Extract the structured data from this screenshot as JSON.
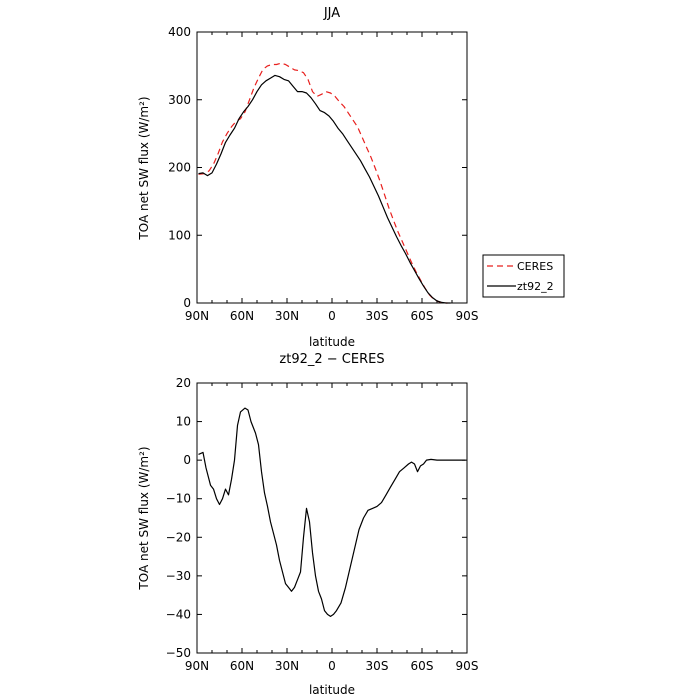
{
  "chart_data": [
    {
      "type": "line",
      "title": "JJA",
      "xlabel": "latitude",
      "ylabel": "TOA net SW flux (W/m²)",
      "xlim": [
        90,
        -90
      ],
      "ylim": [
        0,
        400
      ],
      "xticks": [
        90,
        60,
        30,
        0,
        -30,
        -60,
        -90
      ],
      "xtick_labels": [
        "90N",
        "60N",
        "30N",
        "0",
        "30S",
        "60S",
        "90S"
      ],
      "yticks": [
        0,
        100,
        200,
        300,
        400
      ],
      "ytick_labels": [
        "0",
        "100",
        "200",
        "300",
        "400"
      ],
      "grid": false,
      "legend_position": "right-outside",
      "series": [
        {
          "name": "CERES",
          "color": "#e8201e",
          "dash": "dashed",
          "points": [
            [
              89,
              190
            ],
            [
              85,
              191
            ],
            [
              82,
              195
            ],
            [
              79,
              205
            ],
            [
              76,
              220
            ],
            [
              73,
              238
            ],
            [
              70,
              250
            ],
            [
              67,
              260
            ],
            [
              64,
              268
            ],
            [
              61,
              272
            ],
            [
              58,
              282
            ],
            [
              55,
              300
            ],
            [
              52,
              318
            ],
            [
              49,
              332
            ],
            [
              46,
              345
            ],
            [
              43,
              350
            ],
            [
              40,
              352
            ],
            [
              37,
              352
            ],
            [
              34,
              354
            ],
            [
              31,
              352
            ],
            [
              28,
              348
            ],
            [
              25,
              344
            ],
            [
              22,
              343
            ],
            [
              19,
              340
            ],
            [
              16,
              330
            ],
            [
              13,
              312
            ],
            [
              10,
              305
            ],
            [
              7,
              308
            ],
            [
              4,
              312
            ],
            [
              1,
              310
            ],
            [
              -2,
              305
            ],
            [
              -5,
              297
            ],
            [
              -8,
              290
            ],
            [
              -11,
              280
            ],
            [
              -14,
              270
            ],
            [
              -17,
              260
            ],
            [
              -20,
              245
            ],
            [
              -23,
              230
            ],
            [
              -26,
              215
            ],
            [
              -29,
              198
            ],
            [
              -32,
              180
            ],
            [
              -35,
              160
            ],
            [
              -38,
              140
            ],
            [
              -41,
              122
            ],
            [
              -44,
              105
            ],
            [
              -47,
              90
            ],
            [
              -50,
              75
            ],
            [
              -53,
              60
            ],
            [
              -56,
              46
            ],
            [
              -59,
              34
            ],
            [
              -62,
              22
            ],
            [
              -65,
              12
            ],
            [
              -68,
              5
            ],
            [
              -71,
              2
            ],
            [
              -74,
              0
            ],
            [
              -77,
              0
            ]
          ]
        },
        {
          "name": "zt92_2",
          "color": "#000000",
          "dash": "solid",
          "points": [
            [
              89,
              191
            ],
            [
              86,
              192
            ],
            [
              83,
              188
            ],
            [
              80,
              192
            ],
            [
              77,
              205
            ],
            [
              74,
              220
            ],
            [
              71,
              237
            ],
            [
              68,
              248
            ],
            [
              65,
              258
            ],
            [
              62,
              272
            ],
            [
              59,
              282
            ],
            [
              56,
              290
            ],
            [
              53,
              300
            ],
            [
              50,
              312
            ],
            [
              47,
              322
            ],
            [
              44,
              328
            ],
            [
              41,
              332
            ],
            [
              38,
              336
            ],
            [
              35,
              334
            ],
            [
              32,
              330
            ],
            [
              29,
              328
            ],
            [
              26,
              320
            ],
            [
              23,
              312
            ],
            [
              20,
              312
            ],
            [
              17,
              310
            ],
            [
              14,
              303
            ],
            [
              11,
              294
            ],
            [
              8,
              284
            ],
            [
              5,
              281
            ],
            [
              2,
              276
            ],
            [
              -1,
              268
            ],
            [
              -4,
              258
            ],
            [
              -7,
              250
            ],
            [
              -10,
              240
            ],
            [
              -13,
              230
            ],
            [
              -16,
              220
            ],
            [
              -19,
              210
            ],
            [
              -22,
              198
            ],
            [
              -25,
              186
            ],
            [
              -28,
              172
            ],
            [
              -31,
              158
            ],
            [
              -34,
              142
            ],
            [
              -37,
              126
            ],
            [
              -40,
              112
            ],
            [
              -43,
              98
            ],
            [
              -46,
              85
            ],
            [
              -49,
              73
            ],
            [
              -52,
              60
            ],
            [
              -55,
              48
            ],
            [
              -58,
              36
            ],
            [
              -61,
              25
            ],
            [
              -64,
              15
            ],
            [
              -67,
              8
            ],
            [
              -70,
              3
            ],
            [
              -73,
              1
            ],
            [
              -76,
              0
            ],
            [
              -79,
              0
            ]
          ]
        }
      ]
    },
    {
      "type": "line",
      "title": "zt92_2 − CERES",
      "xlabel": "latitude",
      "ylabel": "TOA net SW flux (W/m²)",
      "xlim": [
        90,
        -90
      ],
      "ylim": [
        -50,
        20
      ],
      "xticks": [
        90,
        60,
        30,
        0,
        -30,
        -60,
        -90
      ],
      "xtick_labels": [
        "90N",
        "60N",
        "30N",
        "0",
        "30S",
        "60S",
        "90S"
      ],
      "yticks": [
        -50,
        -40,
        -30,
        -20,
        -10,
        0,
        10,
        20
      ],
      "ytick_labels": [
        "−50",
        "−40",
        "−30",
        "−20",
        "−10",
        "0",
        "10",
        "20"
      ],
      "grid": false,
      "series": [
        {
          "color": "#000000",
          "dash": "solid",
          "points": [
            [
              89,
              1.5
            ],
            [
              86,
              2
            ],
            [
              84,
              -2
            ],
            [
              81,
              -6.5
            ],
            [
              79,
              -7.5
            ],
            [
              77,
              -10
            ],
            [
              75,
              -11.5
            ],
            [
              73,
              -10
            ],
            [
              71,
              -7.5
            ],
            [
              69,
              -9
            ],
            [
              67,
              -5
            ],
            [
              65,
              0
            ],
            [
              63,
              9
            ],
            [
              61,
              12.5
            ],
            [
              58,
              13.5
            ],
            [
              56,
              13
            ],
            [
              54,
              10
            ],
            [
              51,
              7
            ],
            [
              49,
              4
            ],
            [
              47,
              -3
            ],
            [
              45,
              -8.5
            ],
            [
              43,
              -12
            ],
            [
              41,
              -16
            ],
            [
              39,
              -19
            ],
            [
              37,
              -22
            ],
            [
              35,
              -26
            ],
            [
              33,
              -29
            ],
            [
              31,
              -32
            ],
            [
              29,
              -33
            ],
            [
              27,
              -34
            ],
            [
              25,
              -33
            ],
            [
              23,
              -31
            ],
            [
              21,
              -29
            ],
            [
              19,
              -20
            ],
            [
              17,
              -12.5
            ],
            [
              15,
              -16
            ],
            [
              13,
              -24
            ],
            [
              11,
              -30
            ],
            [
              9,
              -34
            ],
            [
              7,
              -36
            ],
            [
              5,
              -39
            ],
            [
              3,
              -40
            ],
            [
              1,
              -40.5
            ],
            [
              -1,
              -40
            ],
            [
              -3,
              -39
            ],
            [
              -6,
              -37
            ],
            [
              -9,
              -33
            ],
            [
              -12,
              -28
            ],
            [
              -15,
              -23
            ],
            [
              -18,
              -18
            ],
            [
              -21,
              -15
            ],
            [
              -24,
              -13
            ],
            [
              -27,
              -12.5
            ],
            [
              -30,
              -12
            ],
            [
              -33,
              -11
            ],
            [
              -36,
              -9
            ],
            [
              -39,
              -7
            ],
            [
              -42,
              -5
            ],
            [
              -45,
              -3
            ],
            [
              -48,
              -2
            ],
            [
              -51,
              -1
            ],
            [
              -53,
              -0.5
            ],
            [
              -55,
              -1
            ],
            [
              -57,
              -3
            ],
            [
              -59,
              -1.5
            ],
            [
              -61,
              -1
            ],
            [
              -63,
              0
            ],
            [
              -66,
              0.2
            ],
            [
              -70,
              0
            ],
            [
              -74,
              0
            ],
            [
              -78,
              0
            ],
            [
              -89,
              0
            ]
          ]
        }
      ]
    }
  ]
}
